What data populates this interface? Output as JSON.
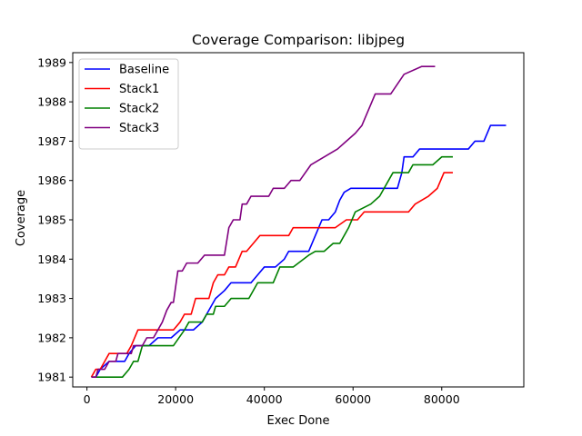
{
  "chart_data": {
    "type": "line",
    "title": "Coverage Comparison: libjpeg",
    "xlabel": "Exec Done",
    "ylabel": "Coverage",
    "xlim": [
      -3200,
      98500
    ],
    "ylim": [
      1980.75,
      1989.25
    ],
    "x_ticks": [
      0,
      20000,
      40000,
      60000,
      80000
    ],
    "y_ticks": [
      1981,
      1982,
      1983,
      1984,
      1985,
      1986,
      1987,
      1988,
      1989
    ],
    "grid": false,
    "legend_position": "top-left",
    "series": [
      {
        "name": "Baseline",
        "color": "#0000ff",
        "points": [
          [
            1000,
            1981
          ],
          [
            2000,
            1981
          ],
          [
            3000,
            1981.2
          ],
          [
            4000,
            1981.3
          ],
          [
            5000,
            1981.4
          ],
          [
            8500,
            1981.4
          ],
          [
            9500,
            1981.6
          ],
          [
            11000,
            1981.8
          ],
          [
            14000,
            1981.8
          ],
          [
            16000,
            1982
          ],
          [
            19000,
            1982
          ],
          [
            21000,
            1982.2
          ],
          [
            24000,
            1982.2
          ],
          [
            26000,
            1982.4
          ],
          [
            27000,
            1982.6
          ],
          [
            28000,
            1982.8
          ],
          [
            29000,
            1983.0
          ],
          [
            31000,
            1983.2
          ],
          [
            32500,
            1983.4
          ],
          [
            37000,
            1983.4
          ],
          [
            38500,
            1983.6
          ],
          [
            40000,
            1983.8
          ],
          [
            42500,
            1983.8
          ],
          [
            44500,
            1984.0
          ],
          [
            45500,
            1984.2
          ],
          [
            50000,
            1984.2
          ],
          [
            51500,
            1984.6
          ],
          [
            53000,
            1985.0
          ],
          [
            54500,
            1985.0
          ],
          [
            56000,
            1985.2
          ],
          [
            57000,
            1985.5
          ],
          [
            58000,
            1985.7
          ],
          [
            59500,
            1985.8
          ],
          [
            70000,
            1985.8
          ],
          [
            71000,
            1986.2
          ],
          [
            71500,
            1986.6
          ],
          [
            73500,
            1986.6
          ],
          [
            75000,
            1986.8
          ],
          [
            86000,
            1986.8
          ],
          [
            87500,
            1987.0
          ],
          [
            89500,
            1987.0
          ],
          [
            91000,
            1987.4
          ],
          [
            94500,
            1987.4
          ]
        ]
      },
      {
        "name": "Stack1",
        "color": "#ff0000",
        "points": [
          [
            1000,
            1981
          ],
          [
            2000,
            1981.2
          ],
          [
            3000,
            1981.2
          ],
          [
            4000,
            1981.4
          ],
          [
            5000,
            1981.6
          ],
          [
            9000,
            1981.6
          ],
          [
            10000,
            1981.8
          ],
          [
            11500,
            1982.2
          ],
          [
            19500,
            1982.2
          ],
          [
            21000,
            1982.4
          ],
          [
            22000,
            1982.6
          ],
          [
            23500,
            1982.6
          ],
          [
            24500,
            1983.0
          ],
          [
            27500,
            1983.0
          ],
          [
            28500,
            1983.4
          ],
          [
            29500,
            1983.6
          ],
          [
            31000,
            1983.6
          ],
          [
            32000,
            1983.8
          ],
          [
            33500,
            1983.8
          ],
          [
            35000,
            1984.2
          ],
          [
            36000,
            1984.2
          ],
          [
            37500,
            1984.4
          ],
          [
            39000,
            1984.6
          ],
          [
            45500,
            1984.6
          ],
          [
            46500,
            1984.8
          ],
          [
            56000,
            1984.8
          ],
          [
            58500,
            1985.0
          ],
          [
            61000,
            1985.0
          ],
          [
            62500,
            1985.2
          ],
          [
            71000,
            1985.2
          ],
          [
            72500,
            1985.2
          ],
          [
            74000,
            1985.4
          ],
          [
            77000,
            1985.6
          ],
          [
            79000,
            1985.8
          ],
          [
            80500,
            1986.2
          ],
          [
            82500,
            1986.2
          ]
        ]
      },
      {
        "name": "Stack2",
        "color": "#008000",
        "points": [
          [
            1000,
            1981
          ],
          [
            8000,
            1981
          ],
          [
            9500,
            1981.2
          ],
          [
            10500,
            1981.4
          ],
          [
            11500,
            1981.4
          ],
          [
            12500,
            1981.8
          ],
          [
            19500,
            1981.8
          ],
          [
            22000,
            1982.2
          ],
          [
            23000,
            1982.4
          ],
          [
            26000,
            1982.4
          ],
          [
            27000,
            1982.6
          ],
          [
            28500,
            1982.6
          ],
          [
            29000,
            1982.8
          ],
          [
            31000,
            1982.8
          ],
          [
            32500,
            1983.0
          ],
          [
            36500,
            1983.0
          ],
          [
            38500,
            1983.4
          ],
          [
            42000,
            1983.4
          ],
          [
            43500,
            1983.8
          ],
          [
            46500,
            1983.8
          ],
          [
            50000,
            1984.1
          ],
          [
            51500,
            1984.2
          ],
          [
            53500,
            1984.2
          ],
          [
            55500,
            1984.4
          ],
          [
            57000,
            1984.4
          ],
          [
            59000,
            1984.8
          ],
          [
            60500,
            1985.2
          ],
          [
            64000,
            1985.4
          ],
          [
            66000,
            1985.6
          ],
          [
            69000,
            1986.2
          ],
          [
            72500,
            1986.2
          ],
          [
            73500,
            1986.4
          ],
          [
            78000,
            1986.4
          ],
          [
            80000,
            1986.6
          ],
          [
            82500,
            1986.6
          ]
        ]
      },
      {
        "name": "Stack3",
        "color": "#800080",
        "points": [
          [
            1000,
            1981
          ],
          [
            2000,
            1981
          ],
          [
            2500,
            1981.2
          ],
          [
            4000,
            1981.2
          ],
          [
            5000,
            1981.4
          ],
          [
            6500,
            1981.4
          ],
          [
            7000,
            1981.6
          ],
          [
            9000,
            1981.6
          ],
          [
            10000,
            1981.6
          ],
          [
            10500,
            1981.8
          ],
          [
            12500,
            1981.8
          ],
          [
            13500,
            1982.0
          ],
          [
            15000,
            1982.0
          ],
          [
            16000,
            1982.2
          ],
          [
            17000,
            1982.4
          ],
          [
            18000,
            1982.7
          ],
          [
            19000,
            1982.9
          ],
          [
            19500,
            1982.9
          ],
          [
            20500,
            1983.7
          ],
          [
            21500,
            1983.7
          ],
          [
            22500,
            1983.9
          ],
          [
            25000,
            1983.9
          ],
          [
            26500,
            1984.1
          ],
          [
            31000,
            1984.1
          ],
          [
            32000,
            1984.8
          ],
          [
            33000,
            1985.0
          ],
          [
            34500,
            1985.0
          ],
          [
            35000,
            1985.4
          ],
          [
            36000,
            1985.4
          ],
          [
            37000,
            1985.6
          ],
          [
            41000,
            1985.6
          ],
          [
            42000,
            1985.8
          ],
          [
            44500,
            1985.8
          ],
          [
            46000,
            1986.0
          ],
          [
            48000,
            1986.0
          ],
          [
            50500,
            1986.4
          ],
          [
            56500,
            1986.8
          ],
          [
            58500,
            1987.0
          ],
          [
            60500,
            1987.2
          ],
          [
            62000,
            1987.4
          ],
          [
            65000,
            1988.2
          ],
          [
            68500,
            1988.2
          ],
          [
            71500,
            1988.7
          ],
          [
            75500,
            1988.9
          ],
          [
            78500,
            1988.9
          ]
        ]
      }
    ]
  }
}
